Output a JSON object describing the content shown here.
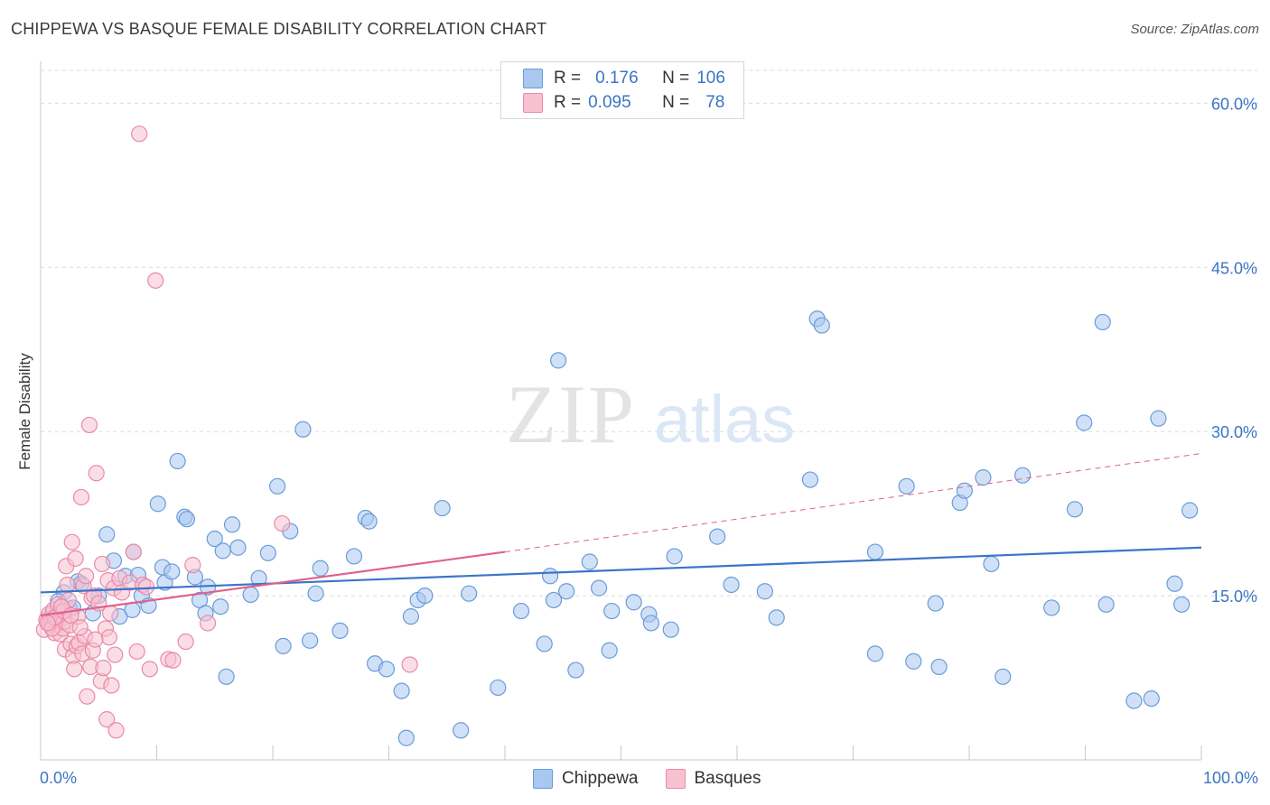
{
  "title": "CHIPPEWA VS BASQUE FEMALE DISABILITY CORRELATION CHART",
  "source": "Source: ZipAtlas.com",
  "watermark": {
    "zip": "ZIP",
    "atlas": "atlas"
  },
  "legend": {
    "rows": [
      {
        "r_label": "R =",
        "r_value": "0.176",
        "n_label": "N =",
        "n_value": "106",
        "color": "#a9c8f0",
        "border": "#6a9bd8"
      },
      {
        "r_label": "R =",
        "r_value": "0.095",
        "n_label": "N =",
        "n_value": "78",
        "color": "#f8c1d2",
        "border": "#e98aa8"
      }
    ]
  },
  "bottom_legend": {
    "items": [
      "Chippewa",
      "Basques"
    ]
  },
  "chart_data": {
    "type": "scatter",
    "title": "CHIPPEWA VS BASQUE FEMALE DISABILITY CORRELATION CHART",
    "xlabel": "",
    "ylabel": "Female Disability",
    "xlim": [
      0,
      100
    ],
    "ylim": [
      0,
      63
    ],
    "x_tick_labels": [
      "0.0%",
      "100.0%"
    ],
    "y_ticks": [
      15,
      30,
      45,
      60
    ],
    "y_tick_labels": [
      "15.0%",
      "30.0%",
      "45.0%",
      "60.0%"
    ],
    "grid": true,
    "legend_position": "top-center",
    "series": [
      {
        "name": "Chippewa",
        "color": "#6a9bd8",
        "fill": "#a9c8f0",
        "trend": {
          "x": [
            0,
            100
          ],
          "y": [
            15.3,
            19.4
          ],
          "dashed_beyond": null,
          "color": "#3b75c9"
        },
        "points": [
          [
            1.0,
            13.4
          ],
          [
            2.0,
            15.3
          ],
          [
            2.5,
            13.8
          ],
          [
            2.8,
            13.9
          ],
          [
            3.2,
            16.3
          ],
          [
            3.5,
            16.1
          ],
          [
            4.5,
            13.4
          ],
          [
            5.0,
            15.0
          ],
          [
            5.7,
            20.6
          ],
          [
            6.3,
            18.2
          ],
          [
            6.8,
            13.1
          ],
          [
            7.3,
            16.8
          ],
          [
            7.9,
            13.7
          ],
          [
            8.4,
            16.9
          ],
          [
            8.7,
            15.0
          ],
          [
            9.3,
            14.1
          ],
          [
            10.1,
            23.4
          ],
          [
            10.5,
            17.6
          ],
          [
            10.7,
            16.2
          ],
          [
            11.3,
            17.2
          ],
          [
            11.8,
            27.3
          ],
          [
            12.4,
            22.2
          ],
          [
            12.6,
            22.0
          ],
          [
            13.3,
            16.7
          ],
          [
            13.7,
            14.6
          ],
          [
            14.2,
            13.4
          ],
          [
            14.4,
            15.8
          ],
          [
            15.0,
            20.2
          ],
          [
            15.7,
            19.1
          ],
          [
            16.0,
            7.6
          ],
          [
            16.5,
            21.5
          ],
          [
            17.0,
            19.4
          ],
          [
            18.1,
            15.1
          ],
          [
            18.8,
            16.6
          ],
          [
            19.6,
            18.9
          ],
          [
            20.4,
            25.0
          ],
          [
            20.9,
            10.4
          ],
          [
            21.5,
            20.9
          ],
          [
            22.6,
            30.2
          ],
          [
            23.2,
            10.9
          ],
          [
            23.7,
            15.2
          ],
          [
            24.1,
            17.5
          ],
          [
            25.8,
            11.8
          ],
          [
            27.0,
            18.6
          ],
          [
            28.0,
            22.1
          ],
          [
            28.3,
            21.8
          ],
          [
            28.8,
            8.8
          ],
          [
            29.8,
            8.3
          ],
          [
            31.1,
            6.3
          ],
          [
            31.5,
            2.0
          ],
          [
            31.9,
            13.1
          ],
          [
            32.5,
            14.6
          ],
          [
            33.1,
            15.0
          ],
          [
            34.6,
            23.0
          ],
          [
            36.2,
            2.7
          ],
          [
            36.9,
            15.2
          ],
          [
            39.4,
            6.6
          ],
          [
            41.4,
            13.6
          ],
          [
            43.4,
            10.6
          ],
          [
            43.9,
            16.8
          ],
          [
            44.2,
            14.6
          ],
          [
            44.6,
            36.5
          ],
          [
            45.3,
            15.4
          ],
          [
            46.1,
            8.2
          ],
          [
            47.3,
            18.1
          ],
          [
            48.1,
            15.7
          ],
          [
            49.0,
            10.0
          ],
          [
            49.2,
            13.6
          ],
          [
            51.1,
            14.4
          ],
          [
            52.4,
            13.3
          ],
          [
            52.6,
            12.5
          ],
          [
            54.3,
            11.9
          ],
          [
            54.6,
            18.6
          ],
          [
            58.3,
            20.4
          ],
          [
            59.5,
            16.0
          ],
          [
            62.4,
            15.4
          ],
          [
            63.4,
            13.0
          ],
          [
            66.3,
            25.6
          ],
          [
            66.9,
            40.3
          ],
          [
            67.3,
            39.7
          ],
          [
            71.9,
            19.0
          ],
          [
            71.9,
            9.7
          ],
          [
            74.6,
            25.0
          ],
          [
            75.2,
            9.0
          ],
          [
            77.1,
            14.3
          ],
          [
            77.4,
            8.5
          ],
          [
            79.2,
            23.5
          ],
          [
            79.6,
            24.6
          ],
          [
            81.2,
            25.8
          ],
          [
            81.9,
            17.9
          ],
          [
            82.9,
            7.6
          ],
          [
            84.6,
            26.0
          ],
          [
            87.1,
            13.9
          ],
          [
            89.1,
            22.9
          ],
          [
            89.9,
            30.8
          ],
          [
            91.5,
            40.0
          ],
          [
            91.8,
            14.2
          ],
          [
            94.2,
            5.4
          ],
          [
            95.7,
            5.6
          ],
          [
            96.3,
            31.2
          ],
          [
            97.7,
            16.1
          ],
          [
            98.3,
            14.2
          ],
          [
            99.0,
            22.8
          ],
          [
            1.5,
            14.5
          ],
          [
            8.0,
            19.0
          ],
          [
            15.5,
            14.0
          ]
        ]
      },
      {
        "name": "Basques",
        "color": "#e98aa8",
        "fill": "#f8c1d2",
        "trend": {
          "x": [
            0,
            40
          ],
          "y": [
            13.2,
            19.0
          ],
          "dashed_to": [
            100,
            28.0
          ],
          "color": "#e0608d"
        },
        "points": [
          [
            0.3,
            11.9
          ],
          [
            0.5,
            12.8
          ],
          [
            0.7,
            13.3
          ],
          [
            0.8,
            12.4
          ],
          [
            1.0,
            12.2
          ],
          [
            1.1,
            13.7
          ],
          [
            1.2,
            11.6
          ],
          [
            1.3,
            12.9
          ],
          [
            1.4,
            13.1
          ],
          [
            1.5,
            14.2
          ],
          [
            1.6,
            12.7
          ],
          [
            1.7,
            11.5
          ],
          [
            1.8,
            13.5
          ],
          [
            1.9,
            12.0
          ],
          [
            2.0,
            12.6
          ],
          [
            2.1,
            10.1
          ],
          [
            2.2,
            17.7
          ],
          [
            2.3,
            16.0
          ],
          [
            2.4,
            14.6
          ],
          [
            2.5,
            12.3
          ],
          [
            2.6,
            10.6
          ],
          [
            2.7,
            19.9
          ],
          [
            2.8,
            9.5
          ],
          [
            2.9,
            8.3
          ],
          [
            3.0,
            18.4
          ],
          [
            3.1,
            10.4
          ],
          [
            3.2,
            13.1
          ],
          [
            3.3,
            10.7
          ],
          [
            3.5,
            24.0
          ],
          [
            3.6,
            9.7
          ],
          [
            3.7,
            15.9
          ],
          [
            3.8,
            11.3
          ],
          [
            3.9,
            16.8
          ],
          [
            4.0,
            5.8
          ],
          [
            4.2,
            30.6
          ],
          [
            4.3,
            8.5
          ],
          [
            4.4,
            14.8
          ],
          [
            4.5,
            10.0
          ],
          [
            4.6,
            15.0
          ],
          [
            4.8,
            26.2
          ],
          [
            5.0,
            14.3
          ],
          [
            5.2,
            7.2
          ],
          [
            5.3,
            17.9
          ],
          [
            5.4,
            8.4
          ],
          [
            5.6,
            12.0
          ],
          [
            5.7,
            3.7
          ],
          [
            5.8,
            16.4
          ],
          [
            5.9,
            11.2
          ],
          [
            6.0,
            13.4
          ],
          [
            6.1,
            6.8
          ],
          [
            6.3,
            15.7
          ],
          [
            6.4,
            9.6
          ],
          [
            6.5,
            2.7
          ],
          [
            6.8,
            16.6
          ],
          [
            7.0,
            15.3
          ],
          [
            7.7,
            16.2
          ],
          [
            8.0,
            19.0
          ],
          [
            8.3,
            9.9
          ],
          [
            8.5,
            57.2
          ],
          [
            8.8,
            16.0
          ],
          [
            9.1,
            15.8
          ],
          [
            9.4,
            8.3
          ],
          [
            9.9,
            43.8
          ],
          [
            11.0,
            9.2
          ],
          [
            11.4,
            9.1
          ],
          [
            12.5,
            10.8
          ],
          [
            13.1,
            17.8
          ],
          [
            14.4,
            12.5
          ],
          [
            20.8,
            21.6
          ],
          [
            31.8,
            8.7
          ],
          [
            1.0,
            12.0
          ],
          [
            1.2,
            13.0
          ],
          [
            2.0,
            13.6
          ],
          [
            0.6,
            12.5
          ],
          [
            3.4,
            12.1
          ],
          [
            4.7,
            11.0
          ],
          [
            1.8,
            14.0
          ],
          [
            2.6,
            13.2
          ]
        ]
      }
    ]
  }
}
